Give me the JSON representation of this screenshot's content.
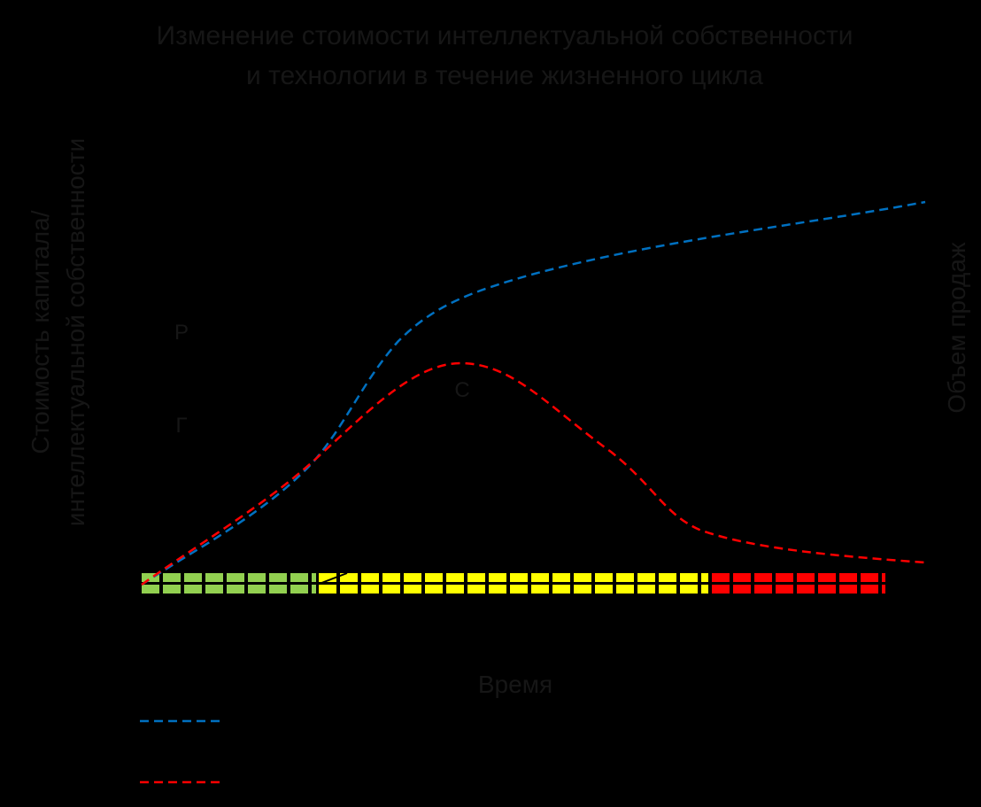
{
  "header": {
    "title": [
      "Изменение стоимости интеллектуальной собственности",
      "и технологии в течение жизненного цикла"
    ]
  },
  "axes": {
    "left": [
      "Стоимость капитала/",
      "интеллектуальной собственности"
    ],
    "right": "Объем продаж",
    "bottom": "Время"
  },
  "markers": [
    "Р",
    "Г",
    "С"
  ]
}
